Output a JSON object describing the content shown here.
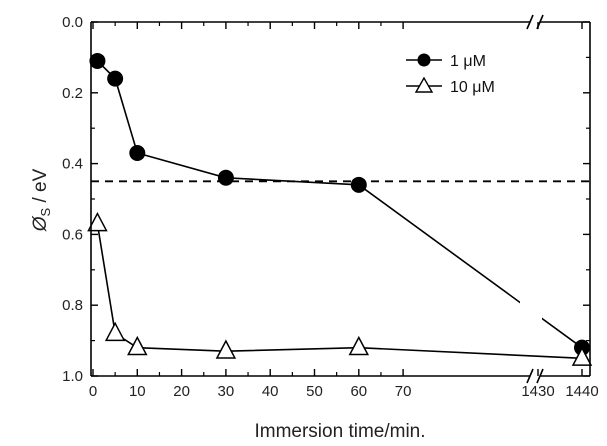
{
  "chart_data": {
    "type": "line",
    "title": "",
    "xlabel": "Immersion  time/min.",
    "ylabel_main": "Ø",
    "ylabel_sub": "S",
    "ylabel_unit": " / eV",
    "y_reversed": true,
    "ylim": [
      0.0,
      1.0
    ],
    "y_ticks": [
      {
        "value": 0.0,
        "label": "0.0"
      },
      {
        "value": 0.2,
        "label": "0.2"
      },
      {
        "value": 0.4,
        "label": "0.4"
      },
      {
        "value": 0.6,
        "label": "0.6"
      },
      {
        "value": 0.8,
        "label": "0.8"
      },
      {
        "value": 1.0,
        "label": "1.0"
      }
    ],
    "x_axis_broken": true,
    "x_break_after": 70,
    "x_break_before": 1430,
    "x_ticks": [
      {
        "value": 0,
        "label": "0"
      },
      {
        "value": 10,
        "label": "10"
      },
      {
        "value": 20,
        "label": "20"
      },
      {
        "value": 30,
        "label": "30"
      },
      {
        "value": 40,
        "label": "40"
      },
      {
        "value": 50,
        "label": "50"
      },
      {
        "value": 60,
        "label": "60"
      },
      {
        "value": 70,
        "label": "70"
      },
      {
        "value": 1430,
        "label": "1430"
      },
      {
        "value": 1440,
        "label": "1440"
      }
    ],
    "reference_line": {
      "y": 0.45,
      "style": "dashed"
    },
    "legend_position": "top-right",
    "series": [
      {
        "name": "1 μM",
        "marker": "filled-circle",
        "color": "#000000",
        "x": [
          1,
          5,
          10,
          30,
          60,
          1440
        ],
        "y": [
          0.11,
          0.16,
          0.37,
          0.44,
          0.46,
          0.92
        ]
      },
      {
        "name": "10 μM",
        "marker": "open-triangle",
        "color": "#000000",
        "x": [
          1,
          5,
          10,
          30,
          60,
          1440
        ],
        "y": [
          0.57,
          0.88,
          0.92,
          0.93,
          0.92,
          0.95
        ]
      }
    ]
  }
}
